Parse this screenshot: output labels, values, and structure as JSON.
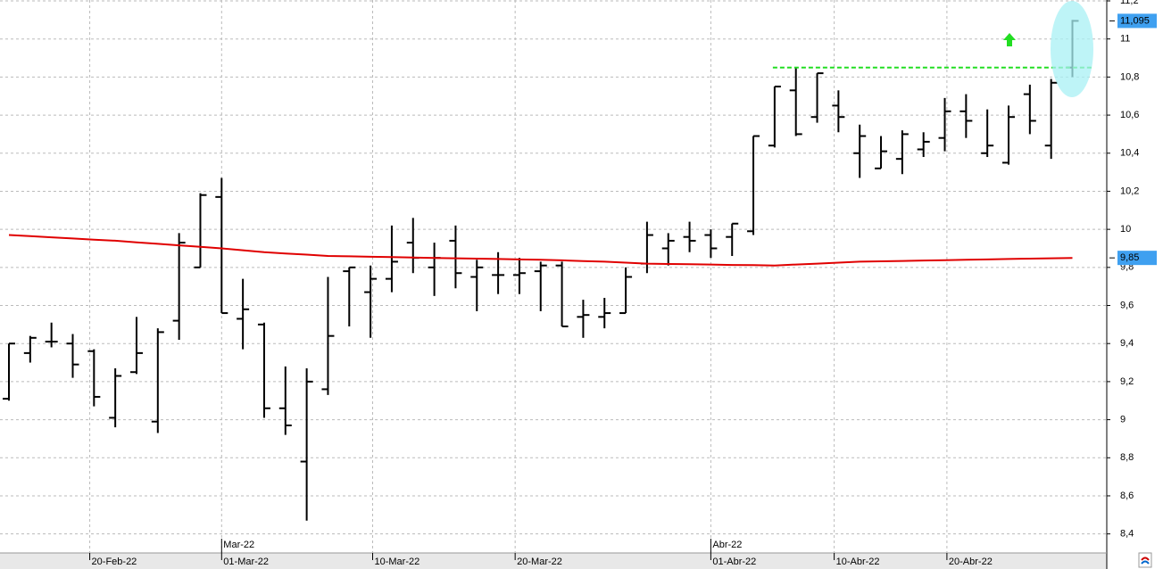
{
  "chart_data": {
    "type": "ohlc",
    "xticks": [
      {
        "value": 3.8,
        "label": "20-Feb-22"
      },
      {
        "value": 10,
        "label": "01-Mar-22"
      },
      {
        "value": 17.1,
        "label": "10-Mar-22"
      },
      {
        "value": 23.8,
        "label": "20-Mar-22"
      },
      {
        "value": 33,
        "label": "01-Abr-22"
      },
      {
        "value": 38.8,
        "label": "10-Abr-22"
      },
      {
        "value": 44.1,
        "label": "20-Abr-22"
      }
    ],
    "month_ticks": [
      {
        "value": 10,
        "label": "Mar-22"
      },
      {
        "value": 33,
        "label": "Abr-22"
      }
    ],
    "ylim": [
      8.3,
      11.2
    ],
    "yticks": [
      {
        "value": 8.4,
        "label": "8,4"
      },
      {
        "value": 8.6,
        "label": "8,6"
      },
      {
        "value": 8.8,
        "label": "8,8"
      },
      9,
      {
        "value": 9.2,
        "label": "9,2"
      },
      {
        "value": 9.4,
        "label": "9,4"
      },
      {
        "value": 9.6,
        "label": "9,6"
      },
      {
        "value": 9.8,
        "label": "9,8"
      },
      10,
      {
        "value": 10.2,
        "label": "10,2"
      },
      {
        "value": 10.4,
        "label": "10,4"
      },
      {
        "value": 10.6,
        "label": "10,6"
      },
      {
        "value": 10.8,
        "label": "10,8"
      },
      11,
      {
        "value": 11.2,
        "label": "11,2"
      }
    ],
    "grid": true,
    "color": "#000000",
    "open": [
      9.11,
      9.35,
      9.41,
      9.4,
      9.36,
      9.01,
      9.25,
      8.99,
      9.52,
      9.8,
      10.17,
      9.53,
      9.5,
      9.06,
      8.78,
      9.16,
      9.78,
      9.67,
      9.74,
      9.93,
      9.8,
      9.94,
      9.75,
      9.76,
      9.76,
      9.78,
      9.81,
      9.54,
      9.54,
      9.56,
      9.82,
      9.9,
      9.96,
      9.97,
      9.96,
      9.99,
      10.44,
      10.73,
      10.59,
      10.65,
      10.4,
      10.32,
      10.37,
      10.42,
      10.48,
      10.62,
      10.4,
      10.35,
      10.71,
      10.44,
      10.85
    ],
    "high": [
      9.4,
      9.44,
      9.51,
      9.45,
      9.37,
      9.27,
      9.54,
      9.48,
      9.98,
      10.19,
      10.27,
      9.74,
      9.51,
      9.28,
      9.27,
      9.75,
      9.8,
      9.81,
      10.02,
      10.06,
      9.93,
      10.02,
      9.84,
      9.88,
      9.85,
      9.83,
      9.83,
      9.63,
      9.64,
      9.8,
      10.04,
      9.98,
      10.04,
      10.0,
      10.03,
      10.49,
      10.75,
      10.85,
      10.82,
      10.73,
      10.55,
      10.49,
      10.52,
      10.51,
      10.69,
      10.71,
      10.63,
      10.65,
      10.76,
      10.79,
      11.1
    ],
    "low": [
      9.1,
      9.3,
      9.38,
      9.22,
      9.07,
      8.96,
      9.24,
      8.93,
      9.42,
      9.8,
      9.56,
      9.37,
      9.01,
      8.92,
      8.47,
      9.13,
      9.49,
      9.43,
      9.67,
      9.77,
      9.65,
      9.69,
      9.57,
      9.66,
      9.66,
      9.57,
      9.49,
      9.43,
      9.48,
      9.56,
      9.77,
      9.81,
      9.88,
      9.85,
      9.86,
      9.97,
      10.43,
      10.49,
      10.56,
      10.51,
      10.27,
      10.32,
      10.29,
      10.38,
      10.41,
      10.48,
      10.38,
      10.34,
      10.5,
      10.37,
      10.8
    ],
    "close": [
      9.4,
      9.43,
      9.41,
      9.29,
      9.12,
      9.23,
      9.35,
      9.46,
      9.93,
      10.18,
      9.56,
      9.58,
      9.06,
      8.97,
      9.2,
      9.44,
      9.8,
      9.74,
      9.83,
      9.85,
      9.85,
      9.77,
      9.8,
      9.76,
      9.77,
      9.81,
      9.49,
      9.55,
      9.56,
      9.75,
      9.97,
      9.94,
      9.94,
      9.9,
      10.03,
      10.49,
      10.75,
      10.5,
      10.82,
      10.59,
      10.49,
      10.41,
      10.5,
      10.46,
      10.62,
      10.57,
      10.44,
      10.59,
      10.57,
      10.77,
      11.095
    ],
    "moving_average": {
      "color": "#e00000",
      "values": [
        9.97,
        9.964,
        9.958,
        9.952,
        9.946,
        9.94,
        9.932,
        9.924,
        9.916,
        9.908,
        9.9,
        9.89,
        9.88,
        9.873,
        9.867,
        9.86,
        9.858,
        9.856,
        9.854,
        9.852,
        9.85,
        9.848,
        9.846,
        9.844,
        9.842,
        9.84,
        9.837,
        9.833,
        9.83,
        9.825,
        9.82,
        9.818,
        9.817,
        9.815,
        9.813,
        9.812,
        9.81,
        9.815,
        9.82,
        9.825,
        9.83,
        9.832,
        9.834,
        9.836,
        9.838,
        9.84,
        9.842,
        9.844,
        9.846,
        9.848,
        9.85
      ]
    },
    "resistance": {
      "value": 10.85,
      "from": 36,
      "to": 51,
      "color": "#22dd22"
    },
    "price_labels": [
      {
        "value": 11.095,
        "label": "11,095",
        "color": "#3fa0f0"
      },
      {
        "value": 9.85,
        "label": "9,85",
        "color": "#3fa0f0"
      }
    ]
  }
}
